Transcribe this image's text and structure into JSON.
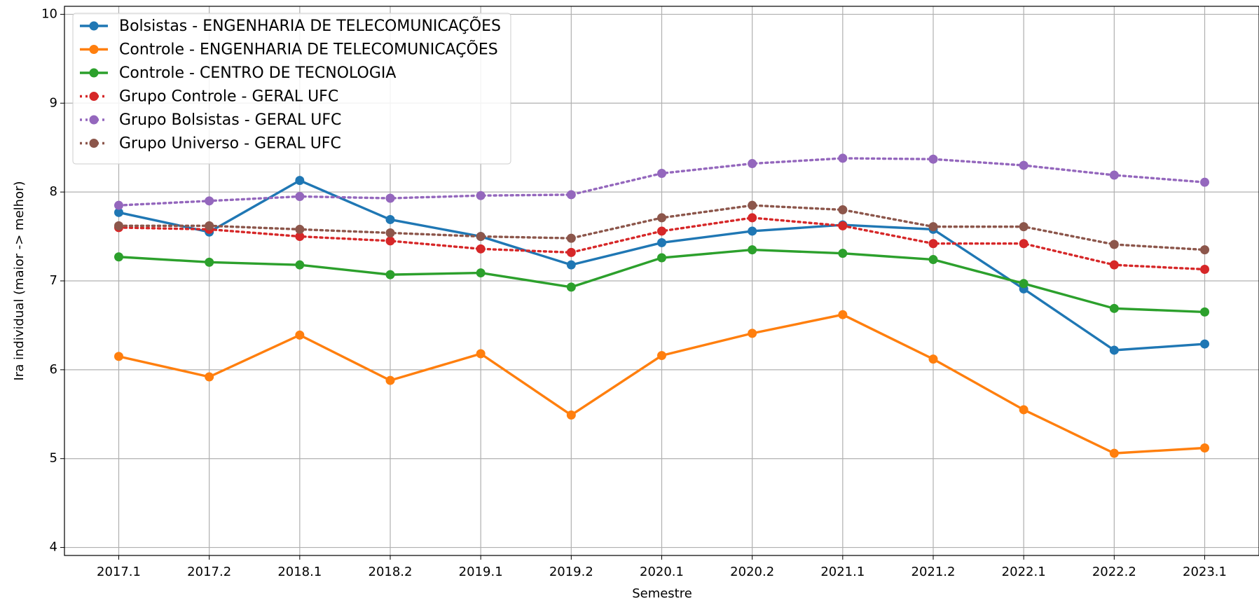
{
  "chart_data": {
    "type": "line",
    "xlabel": "Semestre",
    "ylabel": "Ira individual (maior -> melhor)",
    "categories": [
      "2017.1",
      "2017.2",
      "2018.1",
      "2018.2",
      "2019.1",
      "2019.2",
      "2020.1",
      "2020.2",
      "2021.1",
      "2021.2",
      "2022.1",
      "2022.2",
      "2023.1"
    ],
    "ylim": [
      3.91,
      10.09
    ],
    "yticks": [
      4,
      5,
      6,
      7,
      8,
      9,
      10
    ],
    "grid": true,
    "legend": "upper left",
    "series": [
      {
        "name": "Bolsistas - ENGENHARIA DE TELECOMUNICAÇÕES",
        "color": "#1f77b4",
        "linestyle": "solid",
        "values": [
          7.77,
          7.55,
          8.13,
          7.69,
          7.5,
          7.18,
          7.43,
          7.56,
          7.63,
          7.58,
          6.91,
          6.22,
          6.29
        ]
      },
      {
        "name": "Controle - ENGENHARIA DE TELECOMUNICAÇÕES",
        "color": "#ff7f0e",
        "linestyle": "solid",
        "values": [
          6.15,
          5.92,
          6.39,
          5.88,
          6.18,
          5.49,
          6.16,
          6.41,
          6.62,
          6.12,
          5.55,
          5.06,
          5.12
        ]
      },
      {
        "name": "Controle - CENTRO DE TECNOLOGIA",
        "color": "#2ca02c",
        "linestyle": "solid",
        "values": [
          7.27,
          7.21,
          7.18,
          7.07,
          7.09,
          6.93,
          7.26,
          7.35,
          7.31,
          7.24,
          6.97,
          6.69,
          6.65
        ]
      },
      {
        "name": "Grupo Controle - GERAL UFC",
        "color": "#d62728",
        "linestyle": "dotted",
        "values": [
          7.6,
          7.58,
          7.5,
          7.45,
          7.36,
          7.32,
          7.56,
          7.71,
          7.62,
          7.42,
          7.42,
          7.18,
          7.13
        ]
      },
      {
        "name": "Grupo Bolsistas - GERAL UFC",
        "color": "#9467bd",
        "linestyle": "dotted",
        "values": [
          7.85,
          7.9,
          7.95,
          7.93,
          7.96,
          7.97,
          8.21,
          8.32,
          8.38,
          8.37,
          8.3,
          8.19,
          8.11
        ]
      },
      {
        "name": "Grupo Universo - GERAL UFC",
        "color": "#8c564b",
        "linestyle": "dotted",
        "values": [
          7.62,
          7.62,
          7.58,
          7.54,
          7.5,
          7.48,
          7.71,
          7.85,
          7.8,
          7.61,
          7.61,
          7.41,
          7.35
        ]
      }
    ]
  }
}
